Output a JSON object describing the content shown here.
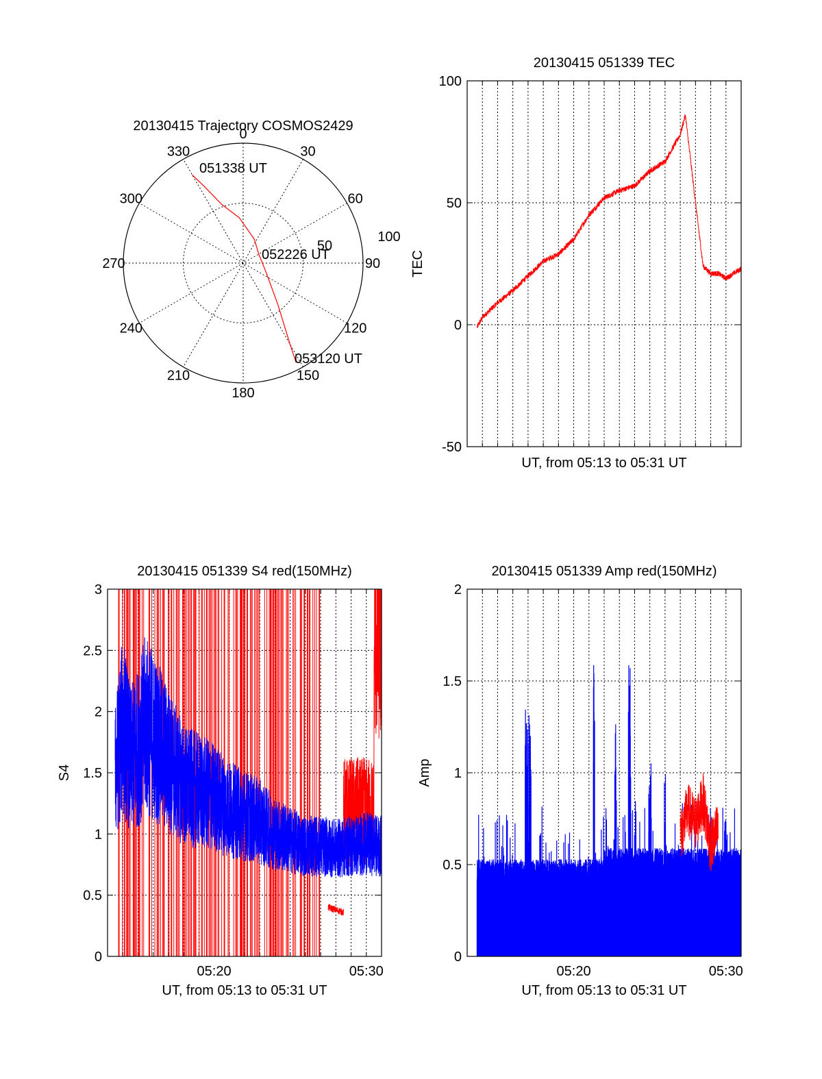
{
  "colors": {
    "red": "#ff0000",
    "blue": "#0000ff",
    "axis": "#000000"
  },
  "chart_data": [
    {
      "type": "polar",
      "title": "20130415 Trajectory COSMOS2429",
      "azimuth_labels": [
        "0",
        "30",
        "60",
        "90",
        "120",
        "150",
        "180",
        "210",
        "240",
        "270",
        "300",
        "330"
      ],
      "radius_labels": [
        "50",
        "100"
      ],
      "r_max": 100,
      "series": [
        {
          "points": [
            [
              330,
              85
            ],
            [
              333,
              72
            ],
            [
              340,
              52
            ],
            [
              355,
              38
            ],
            [
              25,
              22
            ],
            [
              60,
              15
            ],
            [
              110,
              20
            ],
            [
              140,
              45
            ],
            [
              150,
              78
            ],
            [
              152,
              94
            ]
          ]
        }
      ],
      "annotations": [
        {
          "text": "051338 UT"
        },
        {
          "text": "052226 UT"
        },
        {
          "text": "053120 UT"
        }
      ]
    },
    {
      "type": "line",
      "title": "20130415 051339 TEC",
      "xlabel": "UT, from 05:13 to 05:31 UT",
      "ylabel": "TEC",
      "xlim": [
        "05:13",
        "05:31"
      ],
      "ylim": [
        -50,
        100
      ],
      "yticks": [
        "-50",
        "0",
        "50",
        "100"
      ],
      "grid": true,
      "series": [
        {
          "x": [
            "05:13:39",
            "05:14:00",
            "05:15:00",
            "05:16:00",
            "05:17:00",
            "05:18:00",
            "05:19:00",
            "05:20:00",
            "05:21:00",
            "05:22:00",
            "05:23:00",
            "05:24:00",
            "05:25:00",
            "05:26:00",
            "05:27:00",
            "05:27:20",
            "05:28:00",
            "05:28:30",
            "05:29:00",
            "05:29:30",
            "05:30:00",
            "05:31:00"
          ],
          "values": [
            -1,
            3,
            9,
            14,
            20,
            26,
            29,
            35,
            45,
            52,
            55,
            57,
            63,
            67,
            78,
            86,
            50,
            24,
            21,
            21,
            19,
            23
          ]
        }
      ]
    },
    {
      "type": "line",
      "title": "20130415 051339 S4 red(150MHz)",
      "xlabel": "UT, from 05:13 to 05:31 UT",
      "ylabel": "S4",
      "xlim": [
        "05:13",
        "05:31"
      ],
      "ylim": [
        0,
        3
      ],
      "yticks": [
        "0",
        "0.5",
        "1",
        "1.5",
        "2",
        "2.5",
        "3"
      ],
      "xticks": [
        "05:20",
        "05:30"
      ],
      "grid": true,
      "series": [
        {
          "x": [
            "05:13:30",
            "05:14:00",
            "05:14:30",
            "05:15:00",
            "05:15:30",
            "05:16:00",
            "05:16:30",
            "05:17:00",
            "05:17:30",
            "05:18:00",
            "05:19:00",
            "05:20:00",
            "05:21:00",
            "05:22:00",
            "05:23:00",
            "05:24:00",
            "05:25:00",
            "05:26:00",
            "05:27:00",
            "05:28:00",
            "05:29:00",
            "05:30:00",
            "05:31:00"
          ],
          "values": [
            1.5,
            1.9,
            1.6,
            1.7,
            1.9,
            1.8,
            1.7,
            1.6,
            1.5,
            1.4,
            1.35,
            1.3,
            1.2,
            1.15,
            1.1,
            1.0,
            0.95,
            0.9,
            0.9,
            0.88,
            0.9,
            0.92,
            0.9
          ]
        },
        {
          "x": [
            "05:27:30",
            "05:28:00",
            "05:28:30"
          ],
          "values": [
            0.4,
            0.38,
            0.36
          ]
        }
      ]
    },
    {
      "type": "line",
      "title": "20130415 051339 Amp red(150MHz)",
      "xlabel": "UT, from 05:13 to 05:31 UT",
      "ylabel": "Amp",
      "xlim": [
        "05:13",
        "05:31"
      ],
      "ylim": [
        0,
        2
      ],
      "yticks": [
        "0",
        "0.5",
        "1",
        "1.5",
        "2"
      ],
      "xticks": [
        "05:20",
        "05:30"
      ],
      "grid": true,
      "series": [
        {
          "x": [
            "05:13:39",
            "05:15:00",
            "05:16:00",
            "05:17:00",
            "05:18:00",
            "05:19:00",
            "05:20:00",
            "05:21:00",
            "05:21:20",
            "05:22:00",
            "05:23:00",
            "05:23:40",
            "05:24:00",
            "05:25:00",
            "05:26:00",
            "05:27:00",
            "05:28:00",
            "05:29:00",
            "05:30:00",
            "05:31:00"
          ],
          "values": [
            0.4,
            0.45,
            0.42,
            1.35,
            0.45,
            0.42,
            0.4,
            0.45,
            1.62,
            0.5,
            0.55,
            1.6,
            0.55,
            1.0,
            0.6,
            0.6,
            0.65,
            0.62,
            0.55,
            0.5
          ]
        },
        {
          "x": [
            "05:27:00",
            "05:27:30",
            "05:28:00",
            "05:28:30",
            "05:29:00",
            "05:29:30"
          ],
          "values": [
            0.65,
            0.8,
            0.72,
            0.85,
            0.6,
            0.7
          ]
        }
      ]
    }
  ]
}
